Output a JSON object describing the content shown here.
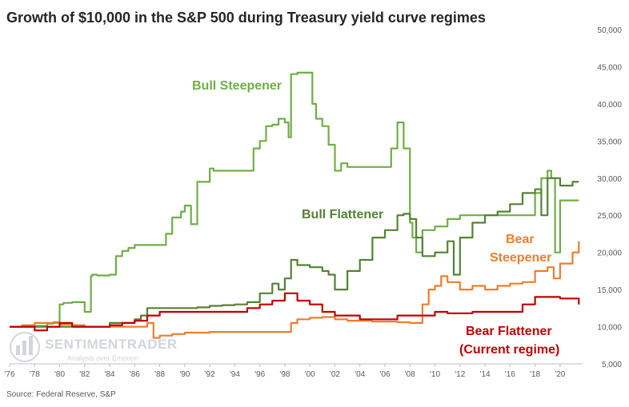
{
  "title": "Growth of $10,000 in the S&P 500 during Treasury yield curve regimes",
  "source": "Source: Federal Reserve, S&P",
  "watermark": {
    "name": "SENTIMENTRADER",
    "tagline": "Analysis over Emotion"
  },
  "colors": {
    "bull_steepener": "#70ad47",
    "bull_flattener": "#548235",
    "bear_steepener": "#ed7d31",
    "bear_flattener": "#c00000",
    "axis_text": "#595959",
    "axis_line": "#bfbfbf"
  },
  "series_labels": {
    "bull_steepener": "Bull Steepener",
    "bull_flattener": "Bull Flattener",
    "bear_steepener_1": "Bear",
    "bear_steepener_2": "Steepener",
    "bear_flattener_1": "Bear Flattener",
    "bear_flattener_2": "(Current regime)"
  },
  "chart_data": {
    "type": "line",
    "title": "Growth of $10,000 in the S&P 500 during Treasury yield curve regimes",
    "xlabel": "",
    "ylabel": "",
    "xlim": [
      1976,
      2021.8
    ],
    "ylim": [
      5000,
      50000
    ],
    "y_axis_position": "right",
    "grid": false,
    "x_ticks": [
      "'76",
      "'78",
      "'80",
      "'82",
      "'84",
      "'86",
      "'88",
      "'90",
      "'92",
      "'94",
      "'96",
      "'98",
      "'00",
      "'02",
      "'04",
      "'06",
      "'08",
      "'10",
      "'12",
      "'14",
      "'16",
      "'18",
      "'20"
    ],
    "x_tick_values": [
      1976,
      1978,
      1980,
      1982,
      1984,
      1986,
      1988,
      1990,
      1992,
      1994,
      1996,
      1998,
      2000,
      2002,
      2004,
      2006,
      2008,
      2010,
      2012,
      2014,
      2016,
      2018,
      2020
    ],
    "y_ticks": [
      "5,000",
      "10,000",
      "15,000",
      "20,000",
      "25,000",
      "30,000",
      "35,000",
      "40,000",
      "45,000",
      "50,000"
    ],
    "y_tick_values": [
      5000,
      10000,
      15000,
      20000,
      25000,
      30000,
      35000,
      40000,
      45000,
      50000
    ],
    "series": [
      {
        "name": "Bull Steepener",
        "x": [
          1976,
          1977,
          1978,
          1979,
          1979.5,
          1980,
          1980.3,
          1981,
          1982,
          1982.5,
          1982.6,
          1983,
          1984,
          1984.5,
          1985,
          1985.5,
          1986,
          1987,
          1988,
          1988.5,
          1989,
          1989.7,
          1990,
          1990.5,
          1991,
          1992,
          1992.3,
          1993,
          1994,
          1995,
          1995.5,
          1996,
          1996.5,
          1997,
          1997.5,
          1998,
          1998.3,
          1998.5,
          1999,
          1999.5,
          2000,
          2000.2,
          2000.5,
          2001,
          2001.5,
          2002,
          2002.5,
          2003,
          2004,
          2005,
          2006,
          2006.5,
          2007,
          2007.5,
          2008,
          2008.2,
          2008.5,
          2009,
          2010,
          2011,
          2012,
          2013,
          2014,
          2015,
          2016,
          2017,
          2018,
          2018.5,
          2019,
          2019.3,
          2019.6,
          2020,
          2021.5
        ],
        "y": [
          10000,
          10100,
          10100,
          10400,
          10600,
          13000,
          13200,
          13300,
          12000,
          16800,
          17000,
          16900,
          17000,
          19500,
          20200,
          20600,
          21000,
          21000,
          21000,
          22500,
          24700,
          25500,
          26300,
          23800,
          29500,
          31300,
          31000,
          31000,
          31000,
          31000,
          34000,
          35000,
          37000,
          37200,
          38000,
          37500,
          35500,
          44000,
          44200,
          44200,
          44200,
          40000,
          38000,
          37000,
          34500,
          31000,
          32000,
          31500,
          31500,
          31500,
          31500,
          34000,
          37500,
          34000,
          24000,
          22000,
          20000,
          23000,
          23500,
          24500,
          25000,
          25000,
          25000,
          25000,
          25000,
          25000,
          28000,
          30000,
          31000,
          30000,
          20000,
          27000,
          27000
        ]
      },
      {
        "name": "Bull Flattener",
        "x": [
          1976,
          1978,
          1980,
          1982,
          1984,
          1986,
          1986.5,
          1987,
          1988,
          1990,
          1991,
          1992,
          1993,
          1994,
          1995,
          1996,
          1997,
          1997.5,
          1998,
          1998.5,
          1999,
          2000,
          2001,
          2001.5,
          2002,
          2003,
          2004,
          2005,
          2006,
          2007,
          2007.5,
          2008,
          2008.5,
          2009,
          2010,
          2011,
          2011.5,
          2012,
          2013,
          2014,
          2015,
          2016,
          2017,
          2018,
          2018.5,
          2019,
          2020,
          2021,
          2021.5
        ],
        "y": [
          10000,
          10000,
          10000,
          10000,
          10500,
          11000,
          11500,
          12500,
          12500,
          12500,
          12600,
          12800,
          12900,
          13000,
          13300,
          14500,
          15800,
          15000,
          16500,
          19000,
          18300,
          18000,
          17500,
          17000,
          15000,
          17500,
          19000,
          22000,
          23000,
          25000,
          25200,
          24500,
          22000,
          19500,
          20000,
          21500,
          17000,
          22000,
          24000,
          25000,
          25500,
          26500,
          28000,
          28500,
          25000,
          30000,
          29000,
          29500,
          29500
        ]
      },
      {
        "name": "Bear Steepener",
        "x": [
          1976,
          1977,
          1978,
          1979,
          1980,
          1981,
          1982,
          1983,
          1984,
          1985,
          1986,
          1987,
          1987.5,
          1988,
          1989,
          1990,
          1992,
          1994,
          1996,
          1998,
          1998.5,
          1999,
          2000,
          2001,
          2002,
          2003,
          2004,
          2005,
          2006,
          2007,
          2008,
          2009,
          2009.5,
          2010,
          2010.5,
          2011,
          2012,
          2013,
          2014,
          2015,
          2016,
          2017,
          2018,
          2019,
          2019.5,
          2020,
          2021,
          2021.5
        ],
        "y": [
          10000,
          10200,
          10500,
          10500,
          10300,
          10200,
          10000,
          10000,
          10000,
          10000,
          10000,
          10500,
          8500,
          8800,
          9000,
          9200,
          9300,
          9300,
          9300,
          9300,
          10500,
          11000,
          11200,
          11300,
          11000,
          10800,
          10800,
          10700,
          10700,
          10600,
          10500,
          13000,
          15000,
          15500,
          16800,
          16000,
          15000,
          15500,
          15000,
          15500,
          15800,
          16000,
          17500,
          18000,
          16500,
          18500,
          20000,
          21500
        ]
      },
      {
        "name": "Bear Flattener",
        "x": [
          1976,
          1977,
          1978,
          1979,
          1980,
          1981,
          1982,
          1983,
          1984,
          1985,
          1986,
          1987,
          1988,
          1989,
          1990,
          1991,
          1992,
          1993,
          1994,
          1995,
          1996,
          1997,
          1998,
          1999,
          2000,
          2001,
          2002,
          2003,
          2004,
          2005,
          2006,
          2007,
          2008,
          2009,
          2010,
          2011,
          2012,
          2013,
          2014,
          2015,
          2016,
          2017,
          2018,
          2019,
          2020,
          2021,
          2021.5
        ],
        "y": [
          10000,
          10000,
          9500,
          10000,
          10500,
          10000,
          10000,
          10000,
          10200,
          10500,
          10800,
          11500,
          12000,
          12000,
          12000,
          12000,
          12000,
          12000,
          12000,
          12500,
          13000,
          13500,
          14500,
          13500,
          13000,
          12000,
          11500,
          11500,
          11000,
          11000,
          11000,
          11500,
          11500,
          11500,
          12000,
          11800,
          11800,
          12000,
          12000,
          12000,
          12000,
          13000,
          14000,
          14000,
          13800,
          13800,
          13000
        ]
      }
    ]
  }
}
